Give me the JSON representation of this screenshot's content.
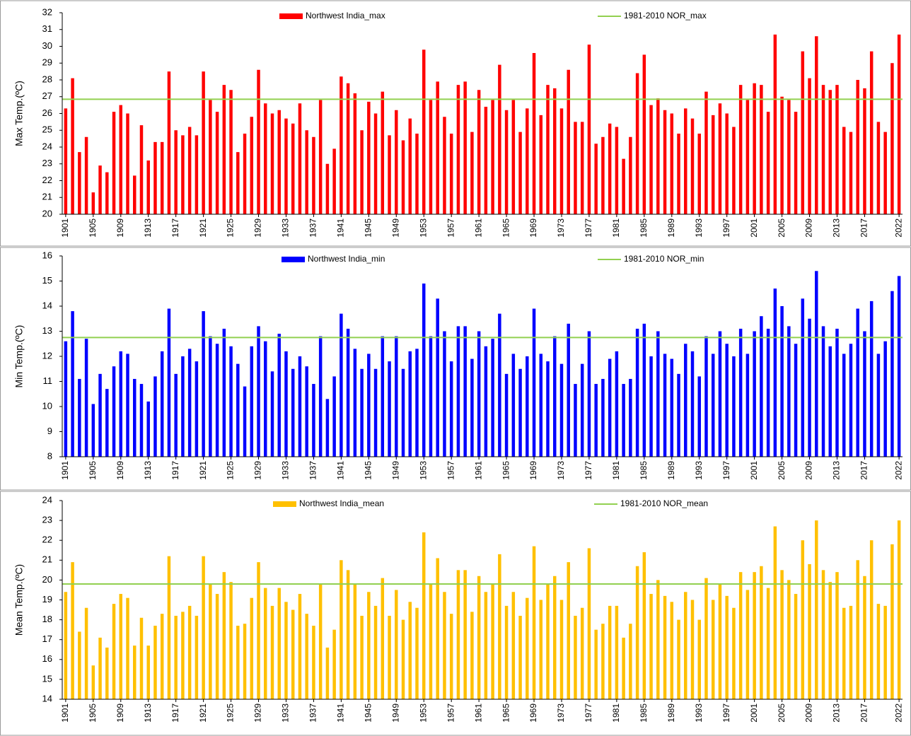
{
  "chart_data": [
    {
      "type": "bar",
      "ylabel": "Max Temp.(ºC)",
      "legend": "top",
      "x": [
        1901,
        1902,
        1903,
        1904,
        1905,
        1906,
        1907,
        1908,
        1909,
        1910,
        1911,
        1912,
        1913,
        1914,
        1915,
        1916,
        1917,
        1918,
        1919,
        1920,
        1921,
        1922,
        1923,
        1924,
        1925,
        1926,
        1927,
        1928,
        1929,
        1930,
        1931,
        1932,
        1933,
        1934,
        1935,
        1936,
        1937,
        1938,
        1939,
        1940,
        1941,
        1942,
        1943,
        1944,
        1945,
        1946,
        1947,
        1948,
        1949,
        1950,
        1951,
        1952,
        1953,
        1954,
        1955,
        1956,
        1957,
        1958,
        1959,
        1960,
        1961,
        1962,
        1963,
        1964,
        1965,
        1966,
        1967,
        1968,
        1969,
        1970,
        1971,
        1972,
        1973,
        1974,
        1975,
        1976,
        1977,
        1978,
        1979,
        1980,
        1981,
        1982,
        1983,
        1984,
        1985,
        1986,
        1987,
        1988,
        1989,
        1990,
        1991,
        1992,
        1993,
        1994,
        1995,
        1996,
        1997,
        1998,
        1999,
        2000,
        2001,
        2002,
        2003,
        2004,
        2005,
        2006,
        2007,
        2008,
        2009,
        2010,
        2011,
        2012,
        2013,
        2014,
        2015,
        2016,
        2017,
        2018,
        2019,
        2020,
        2021,
        2022
      ],
      "xlim": [
        1900.5,
        2022.5
      ],
      "xticks": [
        1901,
        1905,
        1909,
        1913,
        1917,
        1921,
        1925,
        1929,
        1933,
        1937,
        1941,
        1945,
        1949,
        1953,
        1957,
        1961,
        1965,
        1969,
        1973,
        1977,
        1981,
        1985,
        1989,
        1993,
        1997,
        2001,
        2005,
        2009,
        2013,
        2017,
        2022
      ],
      "ylim": [
        20,
        32
      ],
      "yticks": [
        20,
        21,
        22,
        23,
        24,
        25,
        26,
        27,
        28,
        29,
        30,
        31,
        32
      ],
      "series": [
        {
          "name": "Northwest India_max",
          "color": "#ff0000",
          "values": [
            26.3,
            28.1,
            23.7,
            24.6,
            21.3,
            22.9,
            22.5,
            26.1,
            26.5,
            26.0,
            22.3,
            25.3,
            23.2,
            24.3,
            24.3,
            28.5,
            25.0,
            24.7,
            25.2,
            24.7,
            28.5,
            26.8,
            26.1,
            27.7,
            27.4,
            23.7,
            24.8,
            25.8,
            28.6,
            26.6,
            26.0,
            26.2,
            25.7,
            25.4,
            26.6,
            25.0,
            24.6,
            26.8,
            23.0,
            23.9,
            28.2,
            27.8,
            27.2,
            25.0,
            26.7,
            26.0,
            27.3,
            24.7,
            26.2,
            24.4,
            25.7,
            24.8,
            29.8,
            26.8,
            27.9,
            25.8,
            24.8,
            27.7,
            27.9,
            24.9,
            27.4,
            26.4,
            26.8,
            28.9,
            26.2,
            26.8,
            24.9,
            26.3,
            29.6,
            25.9,
            27.7,
            27.5,
            26.3,
            28.6,
            25.5,
            25.5,
            30.1,
            24.2,
            24.6,
            25.4,
            25.2,
            23.3,
            24.6,
            28.4,
            29.5,
            26.5,
            26.9,
            26.2,
            26.0,
            24.8,
            26.3,
            25.7,
            24.8,
            27.3,
            25.9,
            26.6,
            26.0,
            25.2,
            27.7,
            26.8,
            27.8,
            27.7,
            26.1,
            30.7,
            27.0,
            26.8,
            26.1,
            29.7,
            28.1,
            30.6,
            27.7,
            27.4,
            27.7,
            25.2,
            24.9,
            28.0,
            27.5,
            29.7,
            25.5,
            24.9,
            29.0,
            30.7
          ]
        }
      ],
      "reference": {
        "name": "1981-2010 NOR_max",
        "color": "#92d050",
        "value": 26.85
      }
    },
    {
      "type": "bar",
      "ylabel": "Min Temp.(ºC)",
      "legend": "top",
      "x": [
        1901,
        1902,
        1903,
        1904,
        1905,
        1906,
        1907,
        1908,
        1909,
        1910,
        1911,
        1912,
        1913,
        1914,
        1915,
        1916,
        1917,
        1918,
        1919,
        1920,
        1921,
        1922,
        1923,
        1924,
        1925,
        1926,
        1927,
        1928,
        1929,
        1930,
        1931,
        1932,
        1933,
        1934,
        1935,
        1936,
        1937,
        1938,
        1939,
        1940,
        1941,
        1942,
        1943,
        1944,
        1945,
        1946,
        1947,
        1948,
        1949,
        1950,
        1951,
        1952,
        1953,
        1954,
        1955,
        1956,
        1957,
        1958,
        1959,
        1960,
        1961,
        1962,
        1963,
        1964,
        1965,
        1966,
        1967,
        1968,
        1969,
        1970,
        1971,
        1972,
        1973,
        1974,
        1975,
        1976,
        1977,
        1978,
        1979,
        1980,
        1981,
        1982,
        1983,
        1984,
        1985,
        1986,
        1987,
        1988,
        1989,
        1990,
        1991,
        1992,
        1993,
        1994,
        1995,
        1996,
        1997,
        1998,
        1999,
        2000,
        2001,
        2002,
        2003,
        2004,
        2005,
        2006,
        2007,
        2008,
        2009,
        2010,
        2011,
        2012,
        2013,
        2014,
        2015,
        2016,
        2017,
        2018,
        2019,
        2020,
        2021,
        2022
      ],
      "xlim": [
        1900.5,
        2022.5
      ],
      "xticks": [
        1901,
        1905,
        1909,
        1913,
        1917,
        1921,
        1925,
        1929,
        1933,
        1937,
        1941,
        1945,
        1949,
        1953,
        1957,
        1961,
        1965,
        1969,
        1973,
        1977,
        1981,
        1985,
        1989,
        1993,
        1997,
        2001,
        2005,
        2009,
        2013,
        2017,
        2022
      ],
      "ylim": [
        8,
        16
      ],
      "yticks": [
        8,
        9,
        10,
        11,
        12,
        13,
        14,
        15,
        16
      ],
      "series": [
        {
          "name": "Northwest India_min",
          "color": "#0000ff",
          "values": [
            12.6,
            13.8,
            11.1,
            12.7,
            10.1,
            11.3,
            10.7,
            11.6,
            12.2,
            12.1,
            11.1,
            10.9,
            10.2,
            11.2,
            12.2,
            13.9,
            11.3,
            12.0,
            12.3,
            11.8,
            13.8,
            12.8,
            12.5,
            13.1,
            12.4,
            11.7,
            10.8,
            12.4,
            13.2,
            12.6,
            11.4,
            12.9,
            12.2,
            11.5,
            12.0,
            11.6,
            10.9,
            12.8,
            10.3,
            11.2,
            13.7,
            13.1,
            12.3,
            11.5,
            12.1,
            11.5,
            12.8,
            11.8,
            12.8,
            11.5,
            12.2,
            12.3,
            14.9,
            12.8,
            14.3,
            13.0,
            11.8,
            13.2,
            13.2,
            11.9,
            13.0,
            12.4,
            12.7,
            13.7,
            11.3,
            12.1,
            11.5,
            12.0,
            13.9,
            12.1,
            11.8,
            12.8,
            11.7,
            13.3,
            10.9,
            11.7,
            13.0,
            10.9,
            11.1,
            11.9,
            12.2,
            10.9,
            11.1,
            13.1,
            13.3,
            12.0,
            13.0,
            12.1,
            11.9,
            11.3,
            12.5,
            12.2,
            11.2,
            12.8,
            12.1,
            13.0,
            12.5,
            12.0,
            13.1,
            12.1,
            13.0,
            13.6,
            13.1,
            14.7,
            14.0,
            13.2,
            12.5,
            14.3,
            13.5,
            15.4,
            13.2,
            12.4,
            13.1,
            12.1,
            12.5,
            13.9,
            13.0,
            14.2,
            12.1,
            12.6,
            14.6,
            15.2
          ]
        }
      ],
      "reference": {
        "name": "1981-2010 NOR_min",
        "color": "#92d050",
        "value": 12.75
      }
    },
    {
      "type": "bar",
      "ylabel": "Mean Temp.(ºC)",
      "legend": "top",
      "x": [
        1901,
        1902,
        1903,
        1904,
        1905,
        1906,
        1907,
        1908,
        1909,
        1910,
        1911,
        1912,
        1913,
        1914,
        1915,
        1916,
        1917,
        1918,
        1919,
        1920,
        1921,
        1922,
        1923,
        1924,
        1925,
        1926,
        1927,
        1928,
        1929,
        1930,
        1931,
        1932,
        1933,
        1934,
        1935,
        1936,
        1937,
        1938,
        1939,
        1940,
        1941,
        1942,
        1943,
        1944,
        1945,
        1946,
        1947,
        1948,
        1949,
        1950,
        1951,
        1952,
        1953,
        1954,
        1955,
        1956,
        1957,
        1958,
        1959,
        1960,
        1961,
        1962,
        1963,
        1964,
        1965,
        1966,
        1967,
        1968,
        1969,
        1970,
        1971,
        1972,
        1973,
        1974,
        1975,
        1976,
        1977,
        1978,
        1979,
        1980,
        1981,
        1982,
        1983,
        1984,
        1985,
        1986,
        1987,
        1988,
        1989,
        1990,
        1991,
        1992,
        1993,
        1994,
        1995,
        1996,
        1997,
        1998,
        1999,
        2000,
        2001,
        2002,
        2003,
        2004,
        2005,
        2006,
        2007,
        2008,
        2009,
        2010,
        2011,
        2012,
        2013,
        2014,
        2015,
        2016,
        2017,
        2018,
        2019,
        2020,
        2021,
        2022
      ],
      "xlim": [
        1900.5,
        2022.5
      ],
      "xticks": [
        1901,
        1905,
        1909,
        1913,
        1917,
        1921,
        1925,
        1929,
        1933,
        1937,
        1941,
        1945,
        1949,
        1953,
        1957,
        1961,
        1965,
        1969,
        1973,
        1977,
        1981,
        1985,
        1989,
        1993,
        1997,
        2001,
        2005,
        2009,
        2013,
        2017,
        2022
      ],
      "ylim": [
        14,
        24
      ],
      "yticks": [
        14,
        15,
        16,
        17,
        18,
        19,
        20,
        21,
        22,
        23,
        24
      ],
      "series": [
        {
          "name": "Northwest India_mean",
          "color": "#ffc000",
          "values": [
            19.4,
            20.9,
            17.4,
            18.6,
            15.7,
            17.1,
            16.6,
            18.8,
            19.3,
            19.1,
            16.7,
            18.1,
            16.7,
            17.7,
            18.3,
            21.2,
            18.2,
            18.4,
            18.7,
            18.2,
            21.2,
            19.8,
            19.3,
            20.4,
            19.9,
            17.7,
            17.8,
            19.1,
            20.9,
            19.6,
            18.7,
            19.6,
            18.9,
            18.5,
            19.3,
            18.3,
            17.7,
            19.8,
            16.6,
            17.5,
            21.0,
            20.5,
            19.8,
            18.2,
            19.4,
            18.7,
            20.1,
            18.2,
            19.5,
            18.0,
            18.9,
            18.6,
            22.4,
            19.8,
            21.1,
            19.4,
            18.3,
            20.5,
            20.5,
            18.4,
            20.2,
            19.4,
            19.8,
            21.3,
            18.7,
            19.4,
            18.2,
            19.1,
            21.7,
            19.0,
            19.8,
            20.2,
            19.0,
            20.9,
            18.2,
            18.6,
            21.6,
            17.5,
            17.8,
            18.7,
            18.7,
            17.1,
            17.8,
            20.7,
            21.4,
            19.3,
            20.0,
            19.2,
            18.9,
            18.0,
            19.4,
            19.0,
            18.0,
            20.1,
            19.0,
            19.8,
            19.2,
            18.6,
            20.4,
            19.5,
            20.4,
            20.7,
            19.6,
            22.7,
            20.5,
            20.0,
            19.3,
            22.0,
            20.8,
            23.0,
            20.5,
            19.9,
            20.4,
            18.6,
            18.7,
            21.0,
            20.2,
            22.0,
            18.8,
            18.7,
            21.8,
            23.0
          ]
        }
      ],
      "reference": {
        "name": "1981-2010 NOR_mean",
        "color": "#92d050",
        "value": 19.8
      }
    }
  ]
}
